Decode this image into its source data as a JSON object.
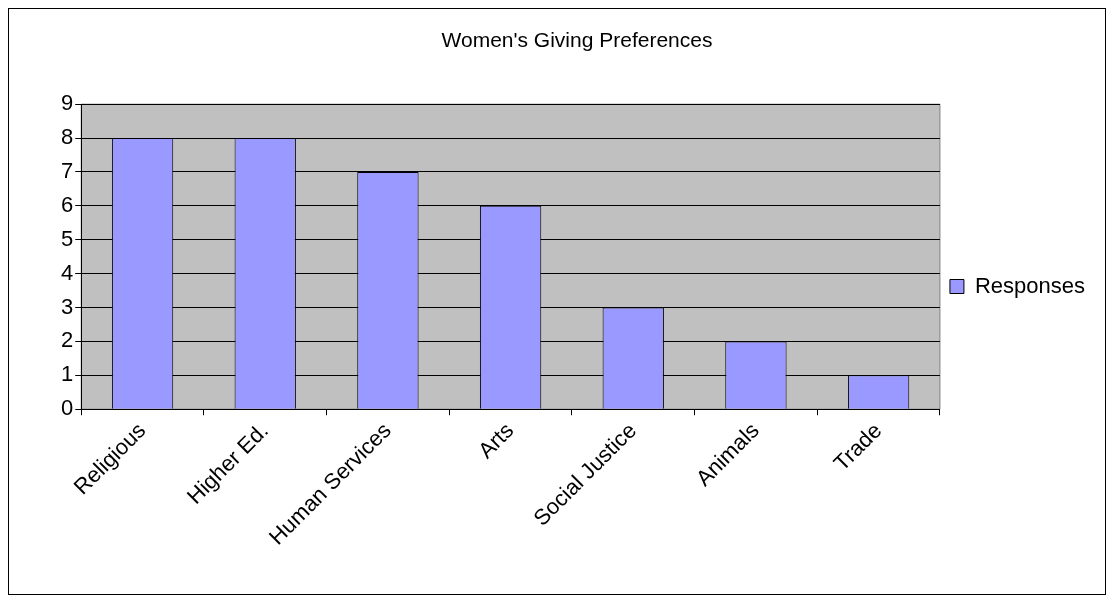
{
  "chart_data": {
    "type": "bar",
    "title": "Women's Giving Preferences",
    "categories": [
      "Religious",
      "Higher Ed.",
      "Human Services",
      "Arts",
      "Social Justice",
      "Animals",
      "Trade"
    ],
    "series": [
      {
        "name": "Responses",
        "color": "#9999ff",
        "values": [
          8,
          8,
          7,
          6,
          3,
          2,
          1
        ]
      }
    ],
    "ylim": [
      0,
      9
    ],
    "yticks": [
      0,
      1,
      2,
      3,
      4,
      5,
      6,
      7,
      8,
      9
    ],
    "grid": "y",
    "legend": "right"
  }
}
